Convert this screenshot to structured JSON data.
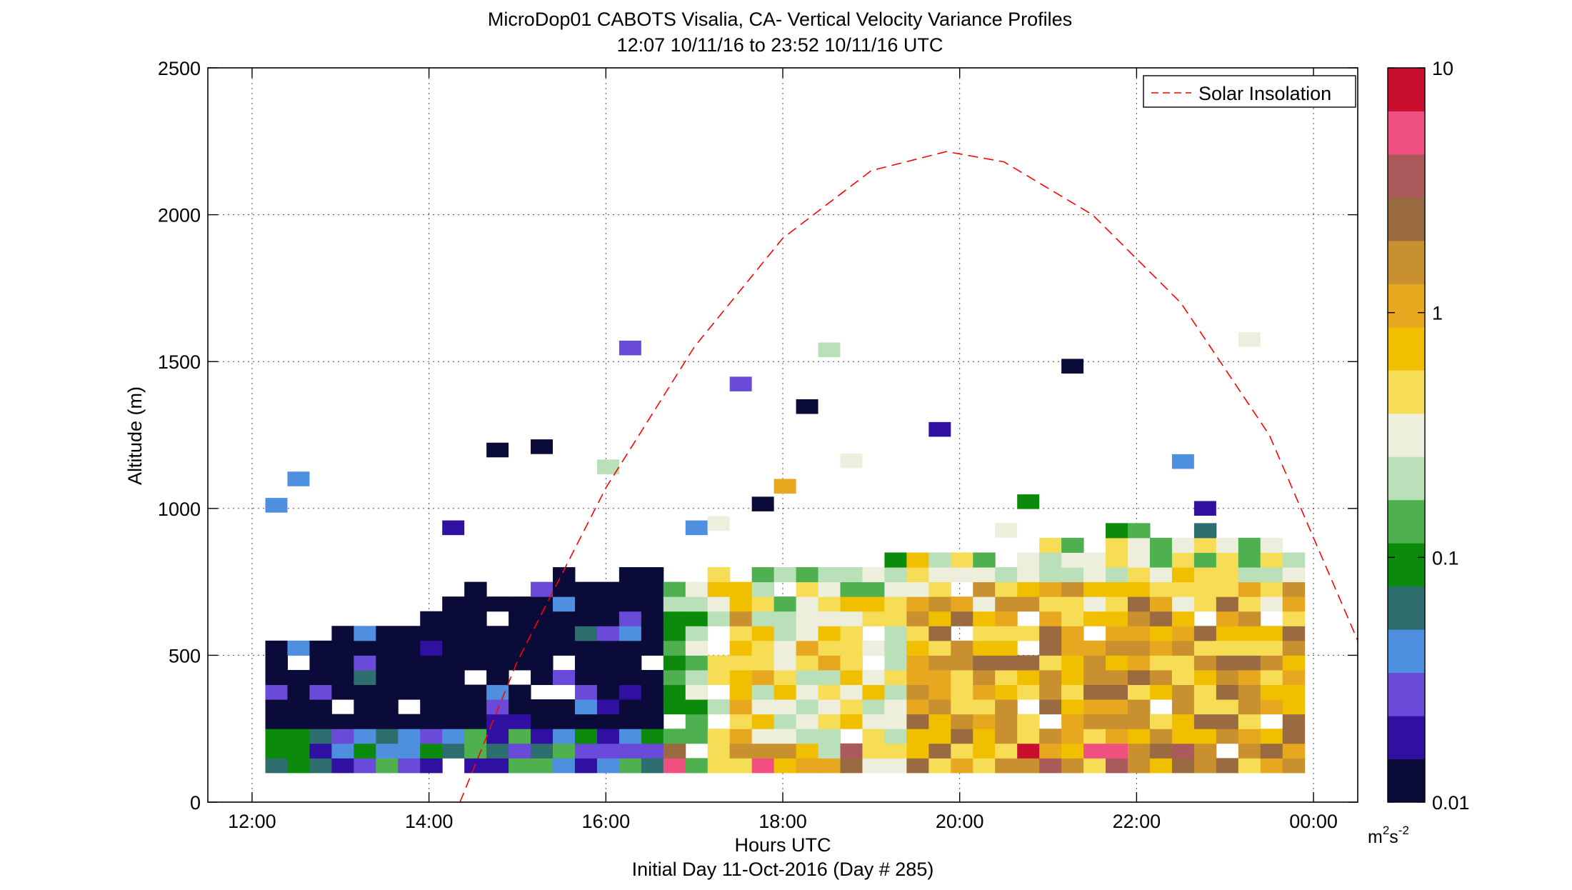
{
  "chart_data": {
    "type": "heatmap",
    "title": "MicroDop01 CABOTS Visalia, CA- Vertical Velocity Variance Profiles",
    "subtitle": "12:07 10/11/16 to 23:52 10/11/16  UTC",
    "xlabel": "Hours UTC",
    "xlabel2": "Initial Day 11-Oct-2016 (Day # 285)",
    "ylabel": "Altitude (m)",
    "xlim_hours": [
      11.5,
      24.5
    ],
    "ylim": [
      0,
      2500
    ],
    "x_tick_values": [
      12,
      14,
      16,
      18,
      20,
      22,
      24
    ],
    "x_tick_labels": [
      "12:00",
      "14:00",
      "16:00",
      "18:00",
      "20:00",
      "22:00",
      "00:00"
    ],
    "y_ticks": [
      0,
      500,
      1000,
      1500,
      2000,
      2500
    ],
    "grid": "dotted",
    "legend": {
      "placement": "top-right",
      "entries": [
        {
          "label": "Solar Insolation",
          "color": "#ff0000",
          "style": "dashed"
        }
      ]
    },
    "colorbar": {
      "scale": "log",
      "range": [
        0.01,
        10
      ],
      "ticks": [
        0.01,
        0.1,
        1,
        10
      ],
      "tick_labels": [
        "0.01",
        "0.1",
        "1",
        "10"
      ],
      "units_base": "m",
      "units_sup1": "2",
      "units_mid": "s",
      "units_sup2": "-2",
      "colors": [
        "#0b0b3a",
        "#3010a0",
        "#6a4ad8",
        "#4f8fe0",
        "#2e6e6e",
        "#0b8a0b",
        "#4fb050",
        "#b9e0b9",
        "#eeeedd",
        "#f7dd55",
        "#f0c000",
        "#e7a820",
        "#c8902e",
        "#9a6a40",
        "#aa5a5a",
        "#f05080",
        "#c8102e"
      ]
    },
    "solar_insolation": {
      "x_hours": [
        14.35,
        15.0,
        16.0,
        17.0,
        18.0,
        19.0,
        19.85,
        20.5,
        21.5,
        22.5,
        23.5,
        24.5
      ],
      "y_altitude": [
        0,
        480,
        1070,
        1550,
        1920,
        2150,
        2215,
        2180,
        2000,
        1700,
        1250,
        550
      ]
    }
  }
}
